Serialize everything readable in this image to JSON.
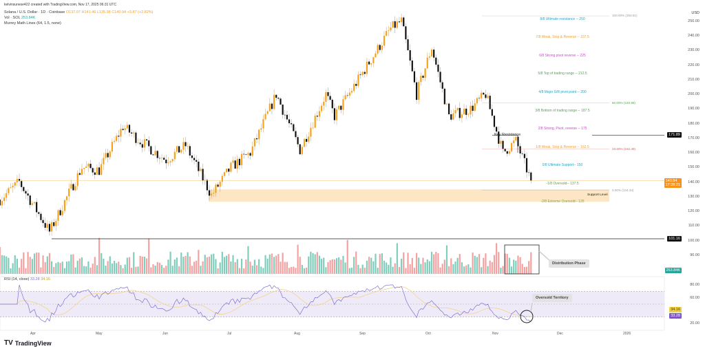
{
  "attribution": "kelvinsunese422 created with TradingView.com, Nov 17, 2025 06:31 UTC",
  "legend": {
    "symbol": "Solana / U.S. Dollar · 1D · Coinbase",
    "o": "O137.07",
    "h": "H141.46",
    "l": "L135.98",
    "c": "C140.94",
    "chg": "+3.87 (+2.82%)",
    "vol_label": "Vol · SOL",
    "vol_value": "253.84K",
    "indicator": "Murrey Math Lines (64, 1.5, none)",
    "rsi_label": "RSI (14, close)",
    "rsi_value": "33.28",
    "rsi_ma": "34.16"
  },
  "currency": "USD",
  "price_axis": [
    "250.00",
    "240.00",
    "230.00",
    "220.00",
    "210.00",
    "200.00",
    "190.00",
    "180.00",
    "170.00",
    "160.00",
    "150.00",
    "140.00",
    "130.00",
    "120.00",
    "110.00",
    "100.00",
    "90.00"
  ],
  "rsi_axis": [
    "80.00",
    "60.00",
    "20.00"
  ],
  "time_axis": [
    "Apr",
    "May",
    "Jun",
    "Jul",
    "Aug",
    "Sep",
    "Oct",
    "Nov",
    "Dec",
    "2026"
  ],
  "murrey": [
    {
      "label": "8/8 Ultimate resistance -- 250",
      "price": 250,
      "color": "#22a6c8"
    },
    {
      "label": "7/8 Weak, Stop & Reverse -- 237.5",
      "price": 237.5,
      "color": "#f0a030"
    },
    {
      "label": "6/8 Strong pivot reverse -- 225",
      "price": 225,
      "color": "#d63fd6"
    },
    {
      "label": "5/8 Top of trading range -- 212.5",
      "price": 212.5,
      "color": "#5aa05a"
    },
    {
      "label": "4/8 Major S/R pivot point -- 200",
      "price": 200,
      "color": "#22a6c8"
    },
    {
      "label": "3/8 Bottom of trading range -- 187.5",
      "price": 187.5,
      "color": "#5aa05a"
    },
    {
      "label": "2/8 Strong, Pivot, reverse -- 175",
      "price": 175,
      "color": "#d63fd6"
    },
    {
      "label": "1/8 Weak, Stop & Reverse -- 162.5",
      "price": 162.5,
      "color": "#f0a030"
    },
    {
      "label": "0/8 Ultimate Support-- 150",
      "price": 150,
      "color": "#22a6c8"
    },
    {
      "label": "-1/8 Oversold-- 137.5",
      "price": 137.5,
      "color": "#5aa05a"
    },
    {
      "label": "-2/8 Extreme Oversold-- 125",
      "price": 125,
      "color": "#8aa040"
    }
  ],
  "fib": [
    {
      "label": "100.00% (253.61)",
      "price": 253.61,
      "color": "#999"
    },
    {
      "label": "50.00% (193.98)",
      "price": 193.98,
      "color": "#5aa05a"
    },
    {
      "label": "23.60% (162.49)",
      "price": 162.49,
      "color": "#e05a5a"
    },
    {
      "label": "0.00% (134.34)",
      "price": 134.34,
      "color": "#999"
    }
  ],
  "annotations": {
    "key_resistance": "Key Resistance",
    "key_resistance_value": "171.89",
    "support": "Support Level",
    "distribution": "Distribution Phase",
    "oversold": "Oversold Territory",
    "line_value": "101.16"
  },
  "tags": {
    "price": "140.94",
    "countdown": "17:28:21",
    "volume": "253.84K",
    "rsi_ma": "34.16",
    "rsi": "33.28"
  },
  "colors": {
    "up": "#f7a21b",
    "down": "#111111",
    "vol_up": "#7fcdbb",
    "vol_down": "#f4a1a1",
    "rsi": "#7e6fd3",
    "rsi_ma": "#f2d48a"
  },
  "brand": "TradingView",
  "chart_data": {
    "type": "candlestick",
    "title": "Solana / U.S. Dollar · 1D · Coinbase",
    "ylim": [
      85,
      255
    ],
    "approx_path": [
      [
        "2025-03-16",
        128
      ],
      [
        "2025-03-25",
        140
      ],
      [
        "2025-04-08",
        106
      ],
      [
        "2025-04-23",
        150
      ],
      [
        "2025-05-01",
        148
      ],
      [
        "2025-05-12",
        178
      ],
      [
        "2025-05-20",
        168
      ],
      [
        "2025-06-01",
        155
      ],
      [
        "2025-06-10",
        165
      ],
      [
        "2025-06-22",
        131
      ],
      [
        "2025-07-01",
        150
      ],
      [
        "2025-07-10",
        160
      ],
      [
        "2025-07-22",
        200
      ],
      [
        "2025-08-02",
        162
      ],
      [
        "2025-08-14",
        200
      ],
      [
        "2025-08-18",
        185
      ],
      [
        "2025-08-29",
        210
      ],
      [
        "2025-09-13",
        245
      ],
      [
        "2025-09-18",
        250
      ],
      [
        "2025-09-25",
        200
      ],
      [
        "2025-10-02",
        232
      ],
      [
        "2025-10-10",
        185
      ],
      [
        "2025-10-20",
        190
      ],
      [
        "2025-10-27",
        200
      ],
      [
        "2025-11-04",
        160
      ],
      [
        "2025-11-10",
        168
      ],
      [
        "2025-11-17",
        140.94
      ]
    ]
  }
}
